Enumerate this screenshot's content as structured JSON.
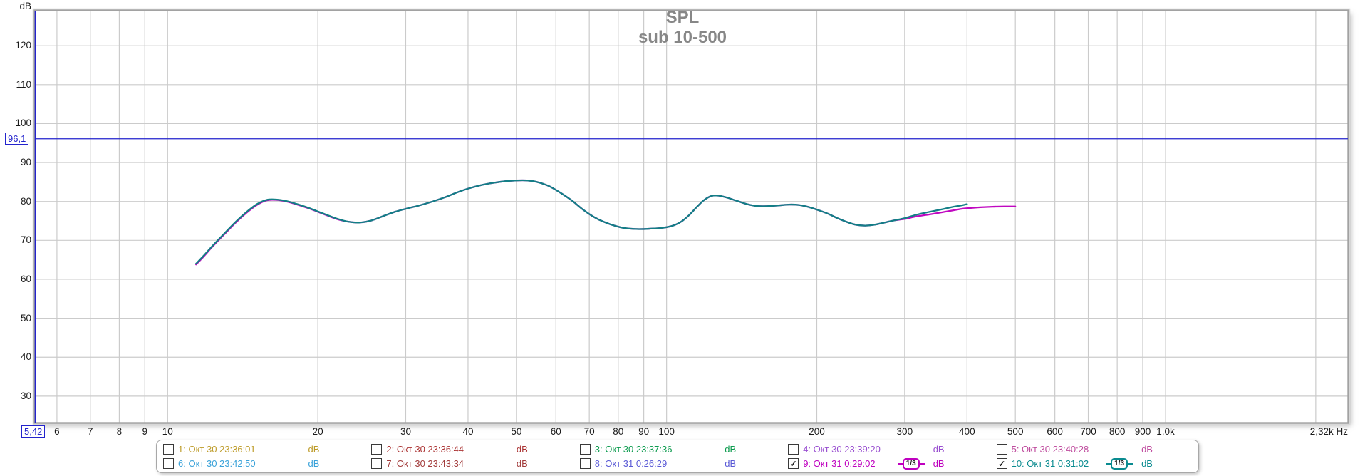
{
  "title": {
    "main": "SPL",
    "sub": "sub 10-500"
  },
  "y_axis": {
    "unit": "dB",
    "ticks": [
      120,
      110,
      100,
      90,
      80,
      70,
      60,
      50,
      40,
      30
    ]
  },
  "x_axis": {
    "ticks": [
      {
        "f": 6,
        "label": "6"
      },
      {
        "f": 7,
        "label": "7"
      },
      {
        "f": 8,
        "label": "8"
      },
      {
        "f": 9,
        "label": "9"
      },
      {
        "f": 10,
        "label": "10"
      },
      {
        "f": 20,
        "label": "20"
      },
      {
        "f": 30,
        "label": "30"
      },
      {
        "f": 40,
        "label": "40"
      },
      {
        "f": 50,
        "label": "50"
      },
      {
        "f": 60,
        "label": "60"
      },
      {
        "f": 70,
        "label": "70"
      },
      {
        "f": 80,
        "label": "80"
      },
      {
        "f": 90,
        "label": "90"
      },
      {
        "f": 100,
        "label": "100"
      },
      {
        "f": 200,
        "label": "200"
      },
      {
        "f": 300,
        "label": "300"
      },
      {
        "f": 400,
        "label": "400"
      },
      {
        "f": 500,
        "label": "500"
      },
      {
        "f": 600,
        "label": "600"
      },
      {
        "f": 700,
        "label": "700"
      },
      {
        "f": 800,
        "label": "800"
      },
      {
        "f": 900,
        "label": "900"
      },
      {
        "f": 1000,
        "label": "1,0k"
      }
    ],
    "unlabeled_grid": [
      2000
    ],
    "end_label": "2,32k Hz"
  },
  "cursor": {
    "freq_label": "5,42",
    "spl_label": "96,1",
    "freq_hz": 5.42,
    "spl_db": 96.1,
    "color": "#2323cd"
  },
  "chart_data": {
    "type": "line",
    "xscale": "log",
    "xlim": [
      5.42,
      2320
    ],
    "ylim": [
      23.2,
      129
    ],
    "xlabel": "Hz",
    "ylabel": "dB",
    "grid": true,
    "title": "SPL",
    "subtitle": "sub 10-500",
    "legend_position": "bottom",
    "series": [
      {
        "name": "9: Окт 31 0:29:02",
        "color": "#c008c0",
        "smoothing": "1/3",
        "points": [
          [
            11.4,
            63.8
          ],
          [
            11.8,
            65.8
          ],
          [
            12.3,
            68.4
          ],
          [
            13,
            71.6
          ],
          [
            13.7,
            74.6
          ],
          [
            14.4,
            77.1
          ],
          [
            15.1,
            79.1
          ],
          [
            15.8,
            80.3
          ],
          [
            16.5,
            80.4
          ],
          [
            17.3,
            80.0
          ],
          [
            18.2,
            79.2
          ],
          [
            19.3,
            78.1
          ],
          [
            20.5,
            76.8
          ],
          [
            21.8,
            75.5
          ],
          [
            23,
            74.8
          ],
          [
            24.3,
            74.6
          ],
          [
            25.6,
            75.1
          ],
          [
            27,
            76.2
          ],
          [
            28.5,
            77.3
          ],
          [
            30,
            78.1
          ],
          [
            32,
            79
          ],
          [
            34,
            80
          ],
          [
            36,
            81.1
          ],
          [
            38,
            82.3
          ],
          [
            40,
            83.3
          ],
          [
            42.5,
            84.2
          ],
          [
            45,
            84.8
          ],
          [
            47.5,
            85.2
          ],
          [
            50,
            85.4
          ],
          [
            52.5,
            85.4
          ],
          [
            55,
            85
          ],
          [
            58,
            84
          ],
          [
            61,
            82.4
          ],
          [
            64.5,
            80.3
          ],
          [
            68,
            77.9
          ],
          [
            71.5,
            76
          ],
          [
            75,
            74.7
          ],
          [
            79,
            73.7
          ],
          [
            83,
            73.1
          ],
          [
            88,
            72.9
          ],
          [
            93,
            73
          ],
          [
            98,
            73.2
          ],
          [
            103,
            73.8
          ],
          [
            107,
            74.8
          ],
          [
            111,
            76.5
          ],
          [
            115,
            78.6
          ],
          [
            119,
            80.4
          ],
          [
            123,
            81.4
          ],
          [
            127,
            81.5
          ],
          [
            132,
            81
          ],
          [
            138,
            80.2
          ],
          [
            145,
            79.3
          ],
          [
            152,
            78.8
          ],
          [
            160,
            78.8
          ],
          [
            168,
            79
          ],
          [
            176,
            79.2
          ],
          [
            184,
            79.1
          ],
          [
            192,
            78.6
          ],
          [
            200,
            77.9
          ],
          [
            210,
            76.9
          ],
          [
            220,
            75.7
          ],
          [
            230,
            74.7
          ],
          [
            240,
            74
          ],
          [
            250,
            73.8
          ],
          [
            260,
            74
          ],
          [
            272,
            74.5
          ],
          [
            285,
            75.1
          ],
          [
            300,
            75.5
          ],
          [
            315,
            76.1
          ],
          [
            330,
            76.5
          ],
          [
            345,
            76.9
          ],
          [
            360,
            77.3
          ],
          [
            375,
            77.7
          ],
          [
            390,
            78.1
          ],
          [
            405,
            78.3
          ],
          [
            425,
            78.5
          ],
          [
            450,
            78.65
          ],
          [
            475,
            78.7
          ],
          [
            500,
            78.7
          ]
        ]
      },
      {
        "name": "10: Окт 31 0:31:02",
        "color": "#137f86",
        "smoothing": "1/3",
        "points": [
          [
            11.4,
            64
          ],
          [
            11.8,
            66
          ],
          [
            12.3,
            68.6
          ],
          [
            13,
            71.8
          ],
          [
            13.7,
            74.8
          ],
          [
            14.4,
            77.3
          ],
          [
            15.1,
            79.3
          ],
          [
            15.8,
            80.4
          ],
          [
            16.5,
            80.5
          ],
          [
            17.3,
            80.1
          ],
          [
            18.2,
            79.3
          ],
          [
            19.3,
            78.2
          ],
          [
            20.5,
            76.9
          ],
          [
            21.8,
            75.6
          ],
          [
            23,
            74.8
          ],
          [
            24.3,
            74.6
          ],
          [
            25.6,
            75.1
          ],
          [
            27,
            76.2
          ],
          [
            28.5,
            77.3
          ],
          [
            30,
            78.1
          ],
          [
            32,
            79
          ],
          [
            34,
            80
          ],
          [
            36,
            81.1
          ],
          [
            38,
            82.3
          ],
          [
            40,
            83.3
          ],
          [
            42.5,
            84.2
          ],
          [
            45,
            84.8
          ],
          [
            47.5,
            85.2
          ],
          [
            50,
            85.4
          ],
          [
            52.5,
            85.4
          ],
          [
            55,
            85
          ],
          [
            58,
            84
          ],
          [
            61,
            82.4
          ],
          [
            64.5,
            80.3
          ],
          [
            68,
            77.9
          ],
          [
            71.5,
            76
          ],
          [
            75,
            74.7
          ],
          [
            79,
            73.7
          ],
          [
            83,
            73.1
          ],
          [
            88,
            72.9
          ],
          [
            93,
            73
          ],
          [
            98,
            73.2
          ],
          [
            103,
            73.8
          ],
          [
            107,
            74.8
          ],
          [
            111,
            76.5
          ],
          [
            115,
            78.6
          ],
          [
            119,
            80.4
          ],
          [
            123,
            81.4
          ],
          [
            127,
            81.5
          ],
          [
            132,
            81
          ],
          [
            138,
            80.2
          ],
          [
            145,
            79.3
          ],
          [
            152,
            78.8
          ],
          [
            160,
            78.8
          ],
          [
            168,
            79
          ],
          [
            176,
            79.2
          ],
          [
            184,
            79.1
          ],
          [
            192,
            78.6
          ],
          [
            200,
            77.9
          ],
          [
            210,
            76.9
          ],
          [
            220,
            75.7
          ],
          [
            230,
            74.7
          ],
          [
            240,
            74
          ],
          [
            250,
            73.8
          ],
          [
            260,
            74
          ],
          [
            272,
            74.5
          ],
          [
            285,
            75.1
          ],
          [
            300,
            75.7
          ],
          [
            315,
            76.5
          ],
          [
            330,
            77.1
          ],
          [
            345,
            77.6
          ],
          [
            360,
            78.1
          ],
          [
            375,
            78.6
          ],
          [
            390,
            79
          ],
          [
            400,
            79.3
          ]
        ]
      }
    ]
  },
  "legend": {
    "check_glyph": "✓",
    "rows": [
      [
        {
          "label": "1: Окт 30 23:36:01",
          "unit": "dB",
          "color": "#bd9b28",
          "checked": false,
          "smoothing": null
        },
        {
          "label": "2: Окт 30 23:36:44",
          "unit": "dB",
          "color": "#ab3434",
          "checked": false,
          "smoothing": null
        },
        {
          "label": "3: Окт 30 23:37:36",
          "unit": "dB",
          "color": "#0c9b4e",
          "checked": false,
          "smoothing": null
        },
        {
          "label": "4: Окт 30 23:39:20",
          "unit": "dB",
          "color": "#994fd0",
          "checked": false,
          "smoothing": null
        },
        {
          "label": "5: Окт 30 23:40:28",
          "unit": "dB",
          "color": "#bf4c9e",
          "checked": false,
          "smoothing": null
        }
      ],
      [
        {
          "label": "6: Окт 30 23:42:50",
          "unit": "dB",
          "color": "#3aa2d9",
          "checked": false,
          "smoothing": null
        },
        {
          "label": "7: Окт 30 23:43:34",
          "unit": "dB",
          "color": "#a23b3b",
          "checked": false,
          "smoothing": null
        },
        {
          "label": "8: Окт 31 0:26:29",
          "unit": "dB",
          "color": "#5a5ad6",
          "checked": false,
          "smoothing": null
        },
        {
          "label": "9: Окт 31 0:29:02",
          "unit": "dB",
          "color": "#bf00bf",
          "checked": true,
          "smoothing": "1/3"
        },
        {
          "label": "10: Окт 31 0:31:02",
          "unit": "dB",
          "color": "#0a8b90",
          "checked": true,
          "smoothing": "1/3"
        }
      ]
    ]
  }
}
